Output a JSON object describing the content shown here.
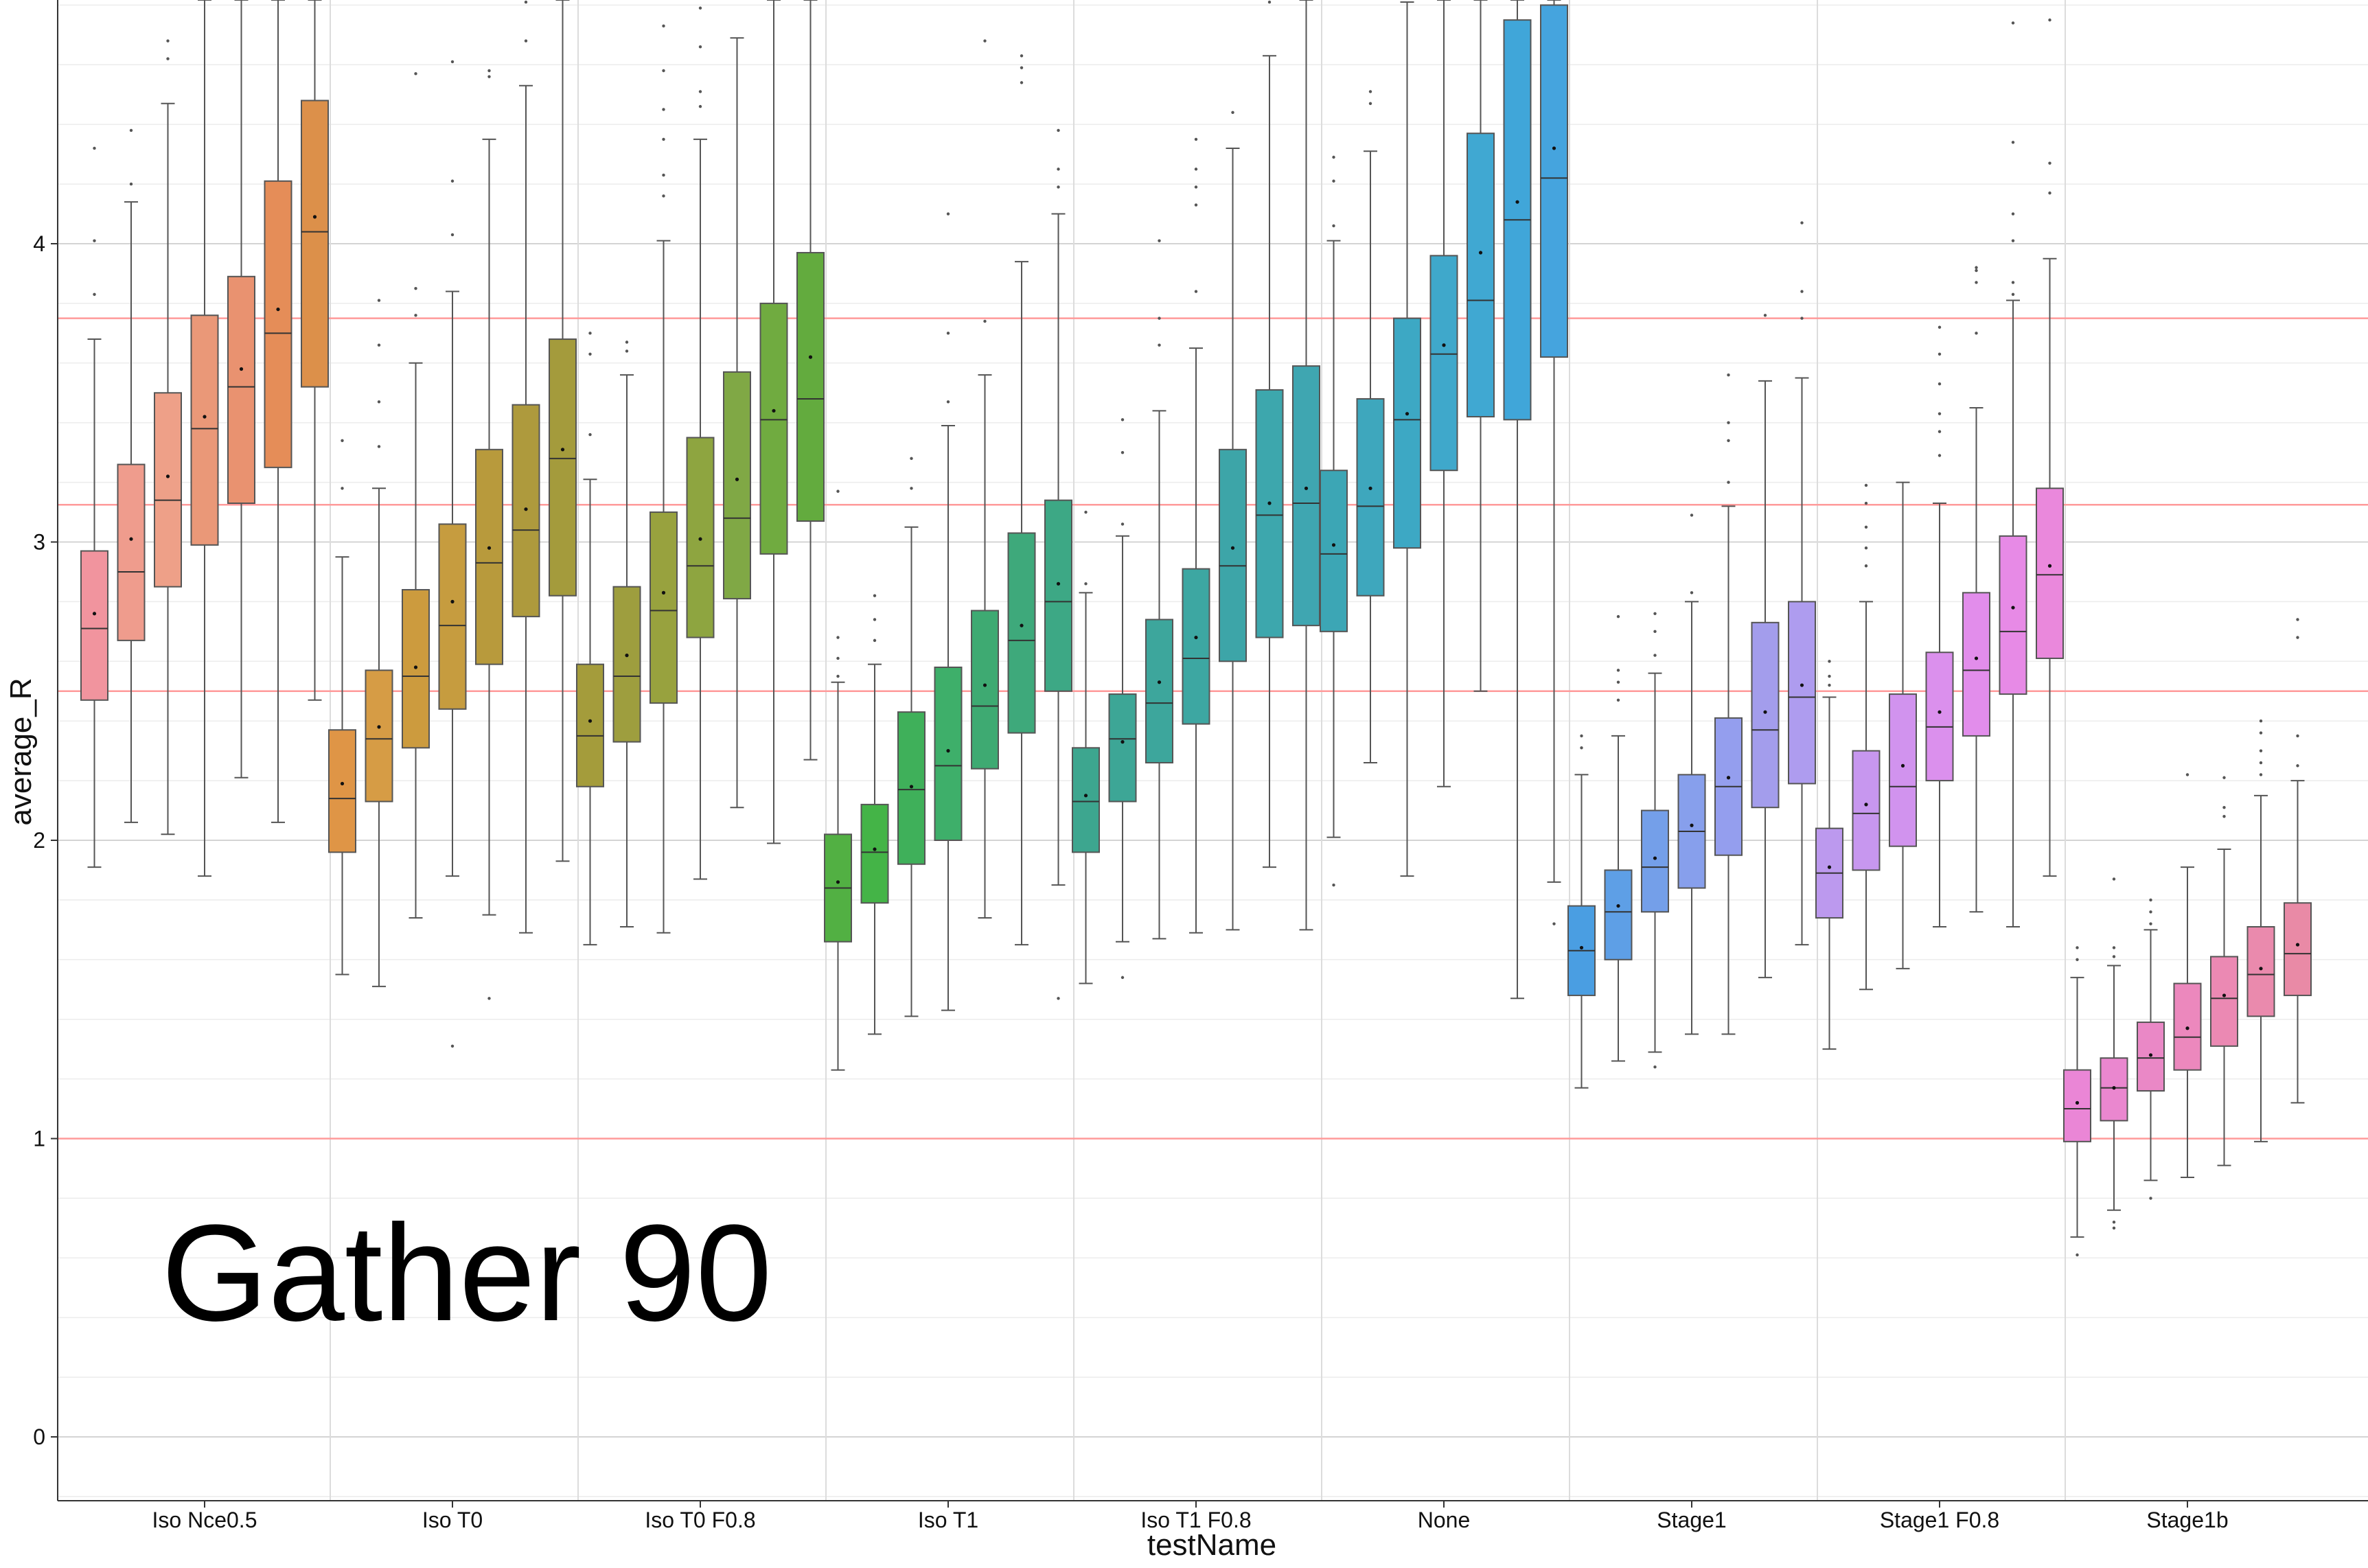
{
  "overlay_text": "Gather 90",
  "chart_data": {
    "type": "box",
    "title": "",
    "xlabel": "testName",
    "ylabel": "average_R",
    "ylim": [
      -0.2,
      4.8
    ],
    "yticks": [
      0,
      1,
      2,
      3,
      4
    ],
    "grid": true,
    "reference_lines": [
      1.0,
      2.5,
      3.125,
      3.75
    ],
    "reference_line_color": "#ff9a9a",
    "categories": [
      {
        "name": "Iso Nce0.5",
        "boxes": [
          {
            "q1": 2.47,
            "median": 2.71,
            "q3": 2.97,
            "lo": 1.91,
            "hi": 3.68,
            "mean": 2.76,
            "color": "#f1949e",
            "outliers": [
              3.83,
              4.01,
              4.32
            ]
          },
          {
            "q1": 2.67,
            "median": 2.9,
            "q3": 3.26,
            "lo": 2.06,
            "hi": 4.14,
            "mean": 3.01,
            "color": "#ef9c8d",
            "outliers": [
              4.2,
              4.38
            ]
          },
          {
            "q1": 2.85,
            "median": 3.14,
            "q3": 3.5,
            "lo": 2.02,
            "hi": 4.47,
            "mean": 3.22,
            "color": "#eea088",
            "outliers": [
              4.62,
              4.68
            ]
          },
          {
            "q1": 2.99,
            "median": 3.38,
            "q3": 3.76,
            "lo": 1.88,
            "hi": 5.0,
            "mean": 3.42,
            "color": "#ea9878",
            "outliers": []
          },
          {
            "q1": 3.13,
            "median": 3.52,
            "q3": 3.89,
            "lo": 2.21,
            "hi": 5.0,
            "mean": 3.58,
            "color": "#e99270",
            "outliers": []
          },
          {
            "q1": 3.25,
            "median": 3.7,
            "q3": 4.21,
            "lo": 2.06,
            "hi": 5.0,
            "mean": 3.78,
            "color": "#e58d58",
            "outliers": []
          },
          {
            "q1": 3.52,
            "median": 4.04,
            "q3": 4.48,
            "lo": 2.47,
            "hi": 5.0,
            "mean": 4.09,
            "color": "#dc904a",
            "outliers": []
          }
        ]
      },
      {
        "name": "Iso T0",
        "boxes": [
          {
            "q1": 1.96,
            "median": 2.14,
            "q3": 2.37,
            "lo": 1.55,
            "hi": 2.95,
            "mean": 2.19,
            "color": "#df9546",
            "outliers": [
              3.18,
              3.34
            ]
          },
          {
            "q1": 2.13,
            "median": 2.34,
            "q3": 2.57,
            "lo": 1.51,
            "hi": 3.18,
            "mean": 2.38,
            "color": "#d69c45",
            "outliers": [
              3.32,
              3.47,
              3.66,
              3.81
            ]
          },
          {
            "q1": 2.31,
            "median": 2.55,
            "q3": 2.84,
            "lo": 1.74,
            "hi": 3.6,
            "mean": 2.58,
            "color": "#cc9b3e",
            "outliers": [
              3.76,
              3.85,
              4.57
            ]
          },
          {
            "q1": 2.44,
            "median": 2.72,
            "q3": 3.06,
            "lo": 1.88,
            "hi": 3.84,
            "mean": 2.8,
            "color": "#c69c3f",
            "outliers": [
              1.31,
              4.03,
              4.21,
              4.61
            ]
          },
          {
            "q1": 2.59,
            "median": 2.93,
            "q3": 3.31,
            "lo": 1.75,
            "hi": 4.35,
            "mean": 2.98,
            "color": "#b89a3c",
            "outliers": [
              1.47,
              4.56,
              4.58
            ]
          },
          {
            "q1": 2.75,
            "median": 3.04,
            "q3": 3.46,
            "lo": 1.69,
            "hi": 4.53,
            "mean": 3.11,
            "color": "#ae9a3d",
            "outliers": [
              4.68,
              4.81
            ]
          },
          {
            "q1": 2.82,
            "median": 3.28,
            "q3": 3.68,
            "lo": 1.93,
            "hi": 5.0,
            "mean": 3.31,
            "color": "#a49b3c",
            "outliers": []
          }
        ]
      },
      {
        "name": "Iso T0 F0.8",
        "boxes": [
          {
            "q1": 2.18,
            "median": 2.35,
            "q3": 2.59,
            "lo": 1.65,
            "hi": 3.21,
            "mean": 2.4,
            "color": "#a49c3b",
            "outliers": [
              3.36,
              3.63,
              3.7
            ]
          },
          {
            "q1": 2.33,
            "median": 2.55,
            "q3": 2.85,
            "lo": 1.71,
            "hi": 3.56,
            "mean": 2.62,
            "color": "#9e9e3e",
            "outliers": [
              3.64,
              3.67
            ]
          },
          {
            "q1": 2.46,
            "median": 2.77,
            "q3": 3.1,
            "lo": 1.69,
            "hi": 4.01,
            "mean": 2.83,
            "color": "#98a23e",
            "outliers": [
              4.16,
              4.23,
              4.35,
              4.45,
              4.58,
              4.73
            ]
          },
          {
            "q1": 2.68,
            "median": 2.92,
            "q3": 3.35,
            "lo": 1.87,
            "hi": 4.35,
            "mean": 3.01,
            "color": "#8ea540",
            "outliers": [
              4.46,
              4.51,
              4.66,
              4.79
            ]
          },
          {
            "q1": 2.81,
            "median": 3.08,
            "q3": 3.57,
            "lo": 2.11,
            "hi": 4.69,
            "mean": 3.21,
            "color": "#80a845",
            "outliers": []
          },
          {
            "q1": 2.96,
            "median": 3.41,
            "q3": 3.8,
            "lo": 1.99,
            "hi": 5.0,
            "mean": 3.44,
            "color": "#70ab40",
            "outliers": []
          },
          {
            "q1": 3.07,
            "median": 3.48,
            "q3": 3.97,
            "lo": 2.27,
            "hi": 5.0,
            "mean": 3.62,
            "color": "#63ab3e",
            "outliers": []
          }
        ]
      },
      {
        "name": "Iso T1",
        "boxes": [
          {
            "q1": 1.66,
            "median": 1.84,
            "q3": 2.02,
            "lo": 1.23,
            "hi": 2.53,
            "mean": 1.86,
            "color": "#52b043",
            "outliers": [
              2.55,
              2.61,
              2.68,
              3.17
            ]
          },
          {
            "q1": 1.79,
            "median": 1.96,
            "q3": 2.12,
            "lo": 1.35,
            "hi": 2.59,
            "mean": 1.97,
            "color": "#44b447",
            "outliers": [
              2.67,
              2.74,
              2.82
            ]
          },
          {
            "q1": 1.92,
            "median": 2.17,
            "q3": 2.43,
            "lo": 1.41,
            "hi": 3.05,
            "mean": 2.18,
            "color": "#3fb05a",
            "outliers": [
              3.18,
              3.28
            ]
          },
          {
            "q1": 2.0,
            "median": 2.25,
            "q3": 2.58,
            "lo": 1.43,
            "hi": 3.39,
            "mean": 2.3,
            "color": "#3eaf6a",
            "outliers": [
              3.47,
              3.7,
              4.1
            ]
          },
          {
            "q1": 2.24,
            "median": 2.45,
            "q3": 2.77,
            "lo": 1.74,
            "hi": 3.56,
            "mean": 2.52,
            "color": "#3eaa72",
            "outliers": [
              3.74,
              4.68
            ]
          },
          {
            "q1": 2.36,
            "median": 2.67,
            "q3": 3.03,
            "lo": 1.65,
            "hi": 3.94,
            "mean": 2.72,
            "color": "#3ea97b",
            "outliers": [
              4.54,
              4.59,
              4.63
            ]
          },
          {
            "q1": 2.5,
            "median": 2.8,
            "q3": 3.14,
            "lo": 1.85,
            "hi": 4.1,
            "mean": 2.86,
            "color": "#3da885",
            "outliers": [
              1.47,
              4.19,
              4.25,
              4.38
            ]
          }
        ]
      },
      {
        "name": "Iso T1 F0.8",
        "boxes": [
          {
            "q1": 1.96,
            "median": 2.13,
            "q3": 2.31,
            "lo": 1.52,
            "hi": 2.83,
            "mean": 2.15,
            "color": "#3da68f",
            "outliers": [
              2.86,
              3.1
            ]
          },
          {
            "q1": 2.13,
            "median": 2.34,
            "q3": 2.49,
            "lo": 1.66,
            "hi": 3.02,
            "mean": 2.33,
            "color": "#3da696",
            "outliers": [
              1.54,
              3.06,
              3.3,
              3.41
            ]
          },
          {
            "q1": 2.26,
            "median": 2.46,
            "q3": 2.74,
            "lo": 1.67,
            "hi": 3.44,
            "mean": 2.53,
            "color": "#3da69c",
            "outliers": [
              3.66,
              3.75,
              4.01
            ]
          },
          {
            "q1": 2.39,
            "median": 2.61,
            "q3": 2.91,
            "lo": 1.69,
            "hi": 3.65,
            "mean": 2.68,
            "color": "#3da7a2",
            "outliers": [
              3.84,
              4.13,
              4.19,
              4.25,
              4.35
            ]
          },
          {
            "q1": 2.6,
            "median": 2.92,
            "q3": 3.31,
            "lo": 1.7,
            "hi": 4.32,
            "mean": 2.98,
            "color": "#3da5a8",
            "outliers": [
              4.44
            ]
          },
          {
            "q1": 2.68,
            "median": 3.09,
            "q3": 3.51,
            "lo": 1.91,
            "hi": 4.63,
            "mean": 3.13,
            "color": "#3da7ad",
            "outliers": [
              4.81
            ]
          },
          {
            "q1": 2.72,
            "median": 3.13,
            "q3": 3.59,
            "lo": 1.7,
            "hi": 5.0,
            "mean": 3.18,
            "color": "#3fa6b1",
            "outliers": []
          }
        ]
      },
      {
        "name": "None",
        "boxes": [
          {
            "q1": 2.7,
            "median": 2.96,
            "q3": 3.24,
            "lo": 2.01,
            "hi": 4.01,
            "mean": 2.99,
            "color": "#3ca6b5",
            "outliers": [
              1.85,
              4.06,
              4.21,
              4.29
            ]
          },
          {
            "q1": 2.82,
            "median": 3.12,
            "q3": 3.48,
            "lo": 2.26,
            "hi": 4.31,
            "mean": 3.18,
            "color": "#3ea7bd",
            "outliers": [
              4.47,
              4.51
            ]
          },
          {
            "q1": 2.98,
            "median": 3.41,
            "q3": 3.75,
            "lo": 1.88,
            "hi": 4.81,
            "mean": 3.43,
            "color": "#3da8c4",
            "outliers": []
          },
          {
            "q1": 3.24,
            "median": 3.63,
            "q3": 3.96,
            "lo": 2.18,
            "hi": 5.0,
            "mean": 3.66,
            "color": "#3fa8cb",
            "outliers": []
          },
          {
            "q1": 3.42,
            "median": 3.81,
            "q3": 4.37,
            "lo": 2.5,
            "hi": 5.0,
            "mean": 3.97,
            "color": "#40a8d2",
            "outliers": []
          },
          {
            "q1": 3.41,
            "median": 4.08,
            "q3": 4.75,
            "lo": 1.47,
            "hi": 5.0,
            "mean": 4.14,
            "color": "#40a6d9",
            "outliers": []
          },
          {
            "q1": 3.62,
            "median": 4.22,
            "q3": 4.8,
            "lo": 1.86,
            "hi": 5.0,
            "mean": 4.32,
            "color": "#45a4de",
            "outliers": [
              1.72
            ]
          }
        ]
      },
      {
        "name": "Stage1",
        "boxes": [
          {
            "q1": 1.48,
            "median": 1.63,
            "q3": 1.78,
            "lo": 1.17,
            "hi": 2.22,
            "mean": 1.64,
            "color": "#4a9ee2",
            "outliers": [
              2.31,
              2.35
            ]
          },
          {
            "q1": 1.6,
            "median": 1.76,
            "q3": 1.9,
            "lo": 1.26,
            "hi": 2.35,
            "mean": 1.78,
            "color": "#5e9fe6",
            "outliers": [
              2.47,
              2.53,
              2.57,
              2.75
            ]
          },
          {
            "q1": 1.76,
            "median": 1.91,
            "q3": 2.1,
            "lo": 1.29,
            "hi": 2.56,
            "mean": 1.94,
            "color": "#749fe9",
            "outliers": [
              1.24,
              2.62,
              2.7,
              2.76
            ]
          },
          {
            "q1": 1.84,
            "median": 2.03,
            "q3": 2.22,
            "lo": 1.35,
            "hi": 2.8,
            "mean": 2.05,
            "color": "#879fec",
            "outliers": [
              2.83,
              3.09
            ]
          },
          {
            "q1": 1.95,
            "median": 2.18,
            "q3": 2.41,
            "lo": 1.35,
            "hi": 3.12,
            "mean": 2.21,
            "color": "#949eee",
            "outliers": [
              3.2,
              3.34,
              3.4,
              3.56
            ]
          },
          {
            "q1": 2.11,
            "median": 2.37,
            "q3": 2.73,
            "lo": 1.54,
            "hi": 3.54,
            "mean": 2.43,
            "color": "#a39dec",
            "outliers": [
              3.76
            ]
          },
          {
            "q1": 2.19,
            "median": 2.48,
            "q3": 2.8,
            "lo": 1.65,
            "hi": 3.55,
            "mean": 2.52,
            "color": "#ae9cef",
            "outliers": [
              3.75,
              3.84,
              4.07
            ]
          }
        ]
      },
      {
        "name": "Stage1 F0.8",
        "boxes": [
          {
            "q1": 1.74,
            "median": 1.89,
            "q3": 2.04,
            "lo": 1.3,
            "hi": 2.48,
            "mean": 1.91,
            "color": "#bc99ee",
            "outliers": [
              2.52,
              2.55,
              2.6
            ]
          },
          {
            "q1": 1.9,
            "median": 2.09,
            "q3": 2.3,
            "lo": 1.5,
            "hi": 2.8,
            "mean": 2.12,
            "color": "#c797ef",
            "outliers": [
              2.92,
              2.98,
              3.05,
              3.13,
              3.19
            ]
          },
          {
            "q1": 1.98,
            "median": 2.18,
            "q3": 2.49,
            "lo": 1.57,
            "hi": 3.2,
            "mean": 2.25,
            "color": "#d193ee",
            "outliers": []
          },
          {
            "q1": 2.2,
            "median": 2.38,
            "q3": 2.63,
            "lo": 1.71,
            "hi": 3.13,
            "mean": 2.43,
            "color": "#db90ed",
            "outliers": [
              3.29,
              3.37,
              3.43,
              3.53,
              3.63,
              3.72
            ]
          },
          {
            "q1": 2.35,
            "median": 2.57,
            "q3": 2.83,
            "lo": 1.76,
            "hi": 3.45,
            "mean": 2.61,
            "color": "#e28deb",
            "outliers": [
              3.7,
              3.87,
              3.91,
              3.92
            ]
          },
          {
            "q1": 2.49,
            "median": 2.7,
            "q3": 3.02,
            "lo": 1.71,
            "hi": 3.81,
            "mean": 2.78,
            "color": "#e78ae6",
            "outliers": [
              3.83,
              3.87,
              4.01,
              4.1,
              4.34,
              4.74
            ]
          },
          {
            "q1": 2.61,
            "median": 2.89,
            "q3": 3.18,
            "lo": 1.88,
            "hi": 3.95,
            "mean": 2.92,
            "color": "#ea88dc",
            "outliers": [
              4.17,
              4.27,
              4.75
            ]
          }
        ]
      },
      {
        "name": "Stage1b",
        "boxes": [
          {
            "q1": 0.99,
            "median": 1.1,
            "q3": 1.23,
            "lo": 0.67,
            "hi": 1.54,
            "mean": 1.12,
            "color": "#ea86d6",
            "outliers": [
              0.61,
              1.6,
              1.64
            ]
          },
          {
            "q1": 1.06,
            "median": 1.17,
            "q3": 1.27,
            "lo": 0.76,
            "hi": 1.58,
            "mean": 1.17,
            "color": "#ea87cf",
            "outliers": [
              0.7,
              0.72,
              1.61,
              1.64,
              1.87
            ]
          },
          {
            "q1": 1.16,
            "median": 1.27,
            "q3": 1.39,
            "lo": 0.86,
            "hi": 1.7,
            "mean": 1.28,
            "color": "#ea88c6",
            "outliers": [
              0.8,
              1.72,
              1.76,
              1.8
            ]
          },
          {
            "q1": 1.23,
            "median": 1.34,
            "q3": 1.52,
            "lo": 0.87,
            "hi": 1.91,
            "mean": 1.37,
            "color": "#ec88bd",
            "outliers": [
              2.22
            ]
          },
          {
            "q1": 1.31,
            "median": 1.47,
            "q3": 1.61,
            "lo": 0.91,
            "hi": 1.97,
            "mean": 1.48,
            "color": "#eb89b3",
            "outliers": [
              2.08,
              2.11,
              2.21
            ]
          },
          {
            "q1": 1.41,
            "median": 1.55,
            "q3": 1.71,
            "lo": 0.99,
            "hi": 2.15,
            "mean": 1.57,
            "color": "#ea8aad",
            "outliers": [
              2.22,
              2.26,
              2.3,
              2.36,
              2.4
            ]
          },
          {
            "q1": 1.48,
            "median": 1.62,
            "q3": 1.79,
            "lo": 1.12,
            "hi": 2.2,
            "mean": 1.65,
            "color": "#e98aa6",
            "outliers": [
              2.25,
              2.35,
              2.68,
              2.74
            ]
          }
        ]
      }
    ]
  }
}
